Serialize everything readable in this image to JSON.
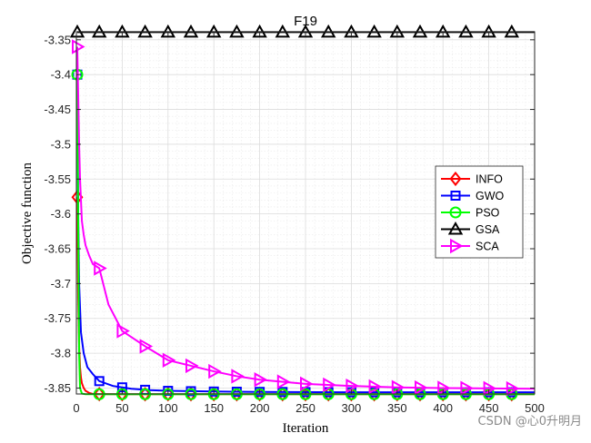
{
  "chart_data": {
    "type": "line",
    "title": "F19",
    "xlabel": "Iteration",
    "ylabel": "Objective function",
    "xlim": [
      0,
      500
    ],
    "ylim": [
      -3.8585,
      -3.3385
    ],
    "x_ticks": [
      "0",
      "50",
      "100",
      "150",
      "200",
      "250",
      "300",
      "350",
      "400",
      "450",
      "500"
    ],
    "y_ticks": [
      "-3.35",
      "-3.4",
      "-3.45",
      "-3.5",
      "-3.55",
      "-3.6",
      "-3.65",
      "-3.7",
      "-3.75",
      "-3.8",
      "-3.85"
    ],
    "grid": true,
    "legend_position": "right",
    "series": [
      {
        "name": "INFO",
        "color": "#ff0000",
        "marker": "diamond",
        "x": [
          1,
          2,
          3,
          4,
          5,
          6,
          8,
          10,
          14,
          18,
          25,
          50,
          100,
          200,
          300,
          400,
          500
        ],
        "y": [
          -3.576,
          -3.72,
          -3.79,
          -3.82,
          -3.835,
          -3.843,
          -3.85,
          -3.854,
          -3.857,
          -3.8585,
          -3.8587,
          -3.8588,
          -3.8588,
          -3.8588,
          -3.8588,
          -3.8588,
          -3.8588
        ]
      },
      {
        "name": "GWO",
        "color": "#0000ff",
        "marker": "square",
        "x": [
          1,
          2,
          3,
          5,
          8,
          12,
          18,
          25,
          40,
          60,
          80,
          100,
          150,
          200,
          300,
          400,
          500
        ],
        "y": [
          -3.4,
          -3.6,
          -3.7,
          -3.77,
          -3.8,
          -3.82,
          -3.83,
          -3.84,
          -3.847,
          -3.851,
          -3.853,
          -3.854,
          -3.855,
          -3.8555,
          -3.856,
          -3.856,
          -3.856
        ]
      },
      {
        "name": "PSO",
        "color": "#00ff00",
        "marker": "circle",
        "x": [
          1,
          2,
          3,
          4,
          6,
          10,
          500
        ],
        "y": [
          -3.4,
          -3.62,
          -3.8,
          -3.85,
          -3.858,
          -3.8588,
          -3.8588
        ]
      },
      {
        "name": "GSA",
        "color": "#000000",
        "marker": "triangle-up",
        "x": [
          1,
          500
        ],
        "y": [
          -3.339,
          -3.339
        ]
      },
      {
        "name": "SCA",
        "color": "#ff00ff",
        "marker": "triangle-right",
        "x": [
          1,
          2,
          3,
          4,
          5,
          6,
          8,
          10,
          14,
          18,
          25,
          35,
          50,
          75,
          100,
          125,
          150,
          175,
          200,
          250,
          300,
          350,
          400,
          450,
          500
        ],
        "y": [
          -3.36,
          -3.43,
          -3.5,
          -3.55,
          -3.58,
          -3.61,
          -3.63,
          -3.645,
          -3.66,
          -3.672,
          -3.678,
          -3.73,
          -3.768,
          -3.79,
          -3.81,
          -3.818,
          -3.826,
          -3.833,
          -3.838,
          -3.844,
          -3.847,
          -3.849,
          -3.85,
          -3.8505,
          -3.851
        ]
      }
    ]
  },
  "watermark": "CSDN @心0升明月"
}
